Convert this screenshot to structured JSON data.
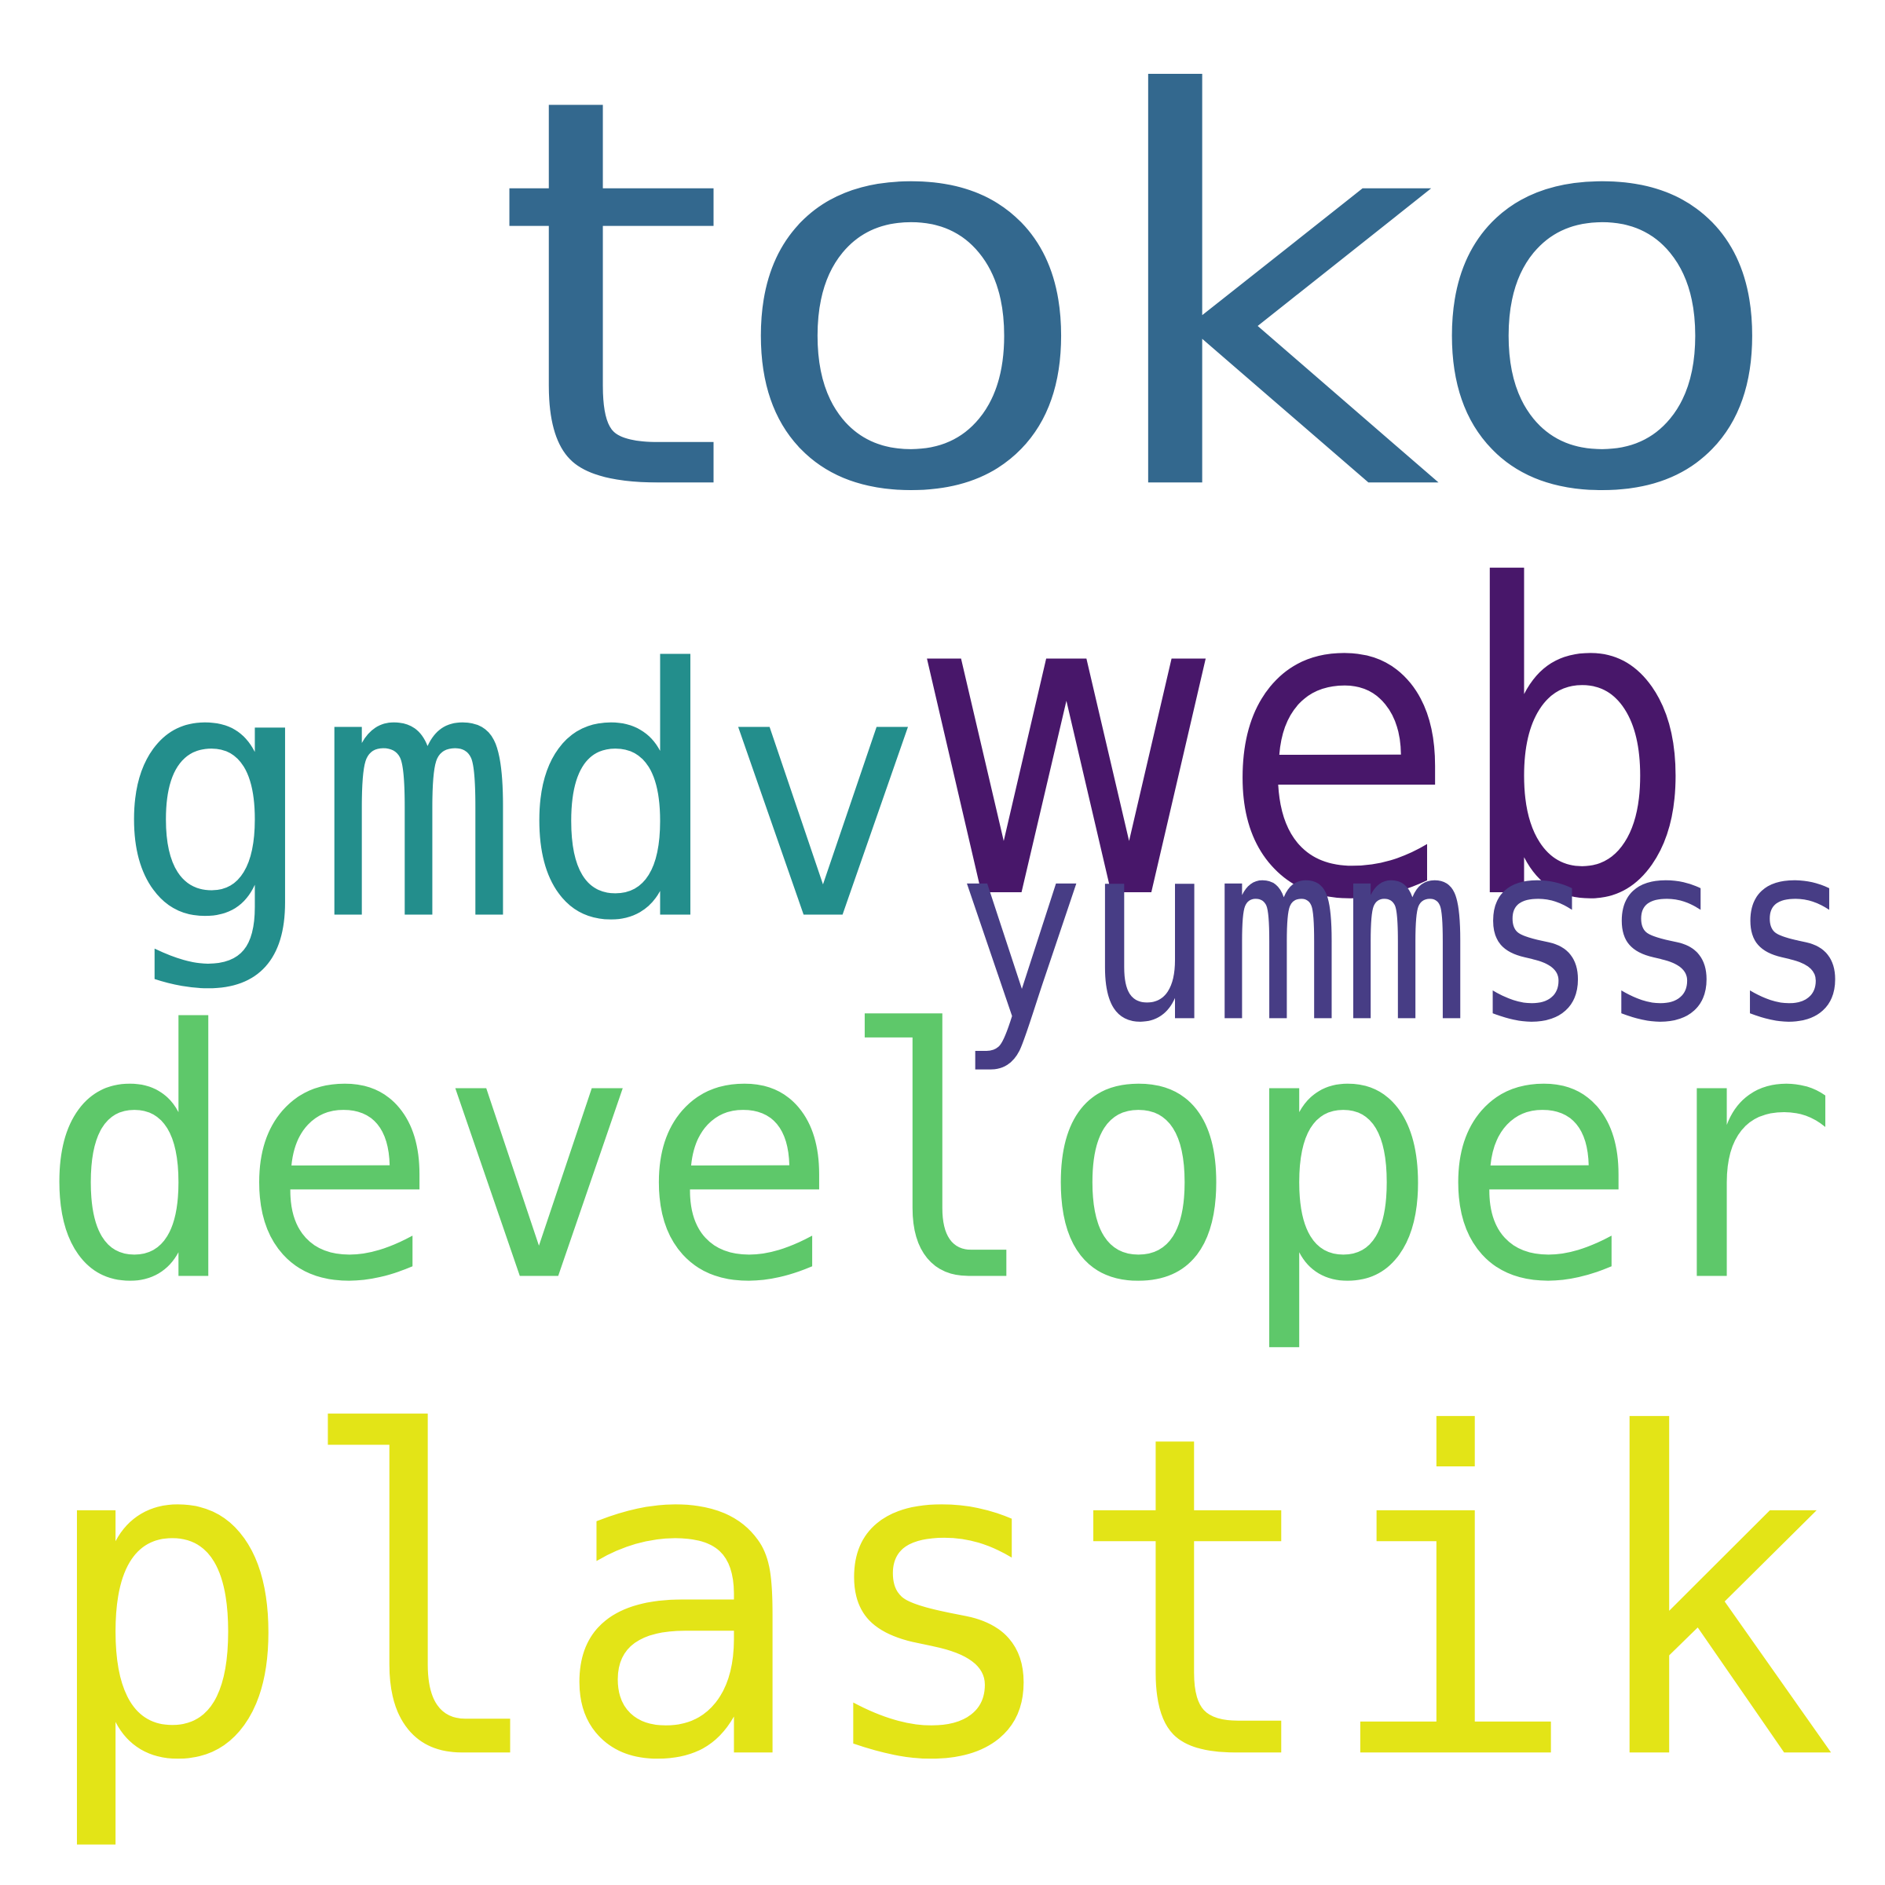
{
  "cloud": {
    "background": "#ffffff",
    "words": {
      "toko": {
        "text": "toko",
        "color": "#33688e"
      },
      "web": {
        "text": "web",
        "color": "#48176a"
      },
      "gmdv": {
        "text": "gmdv",
        "color": "#238e8c"
      },
      "yummsss": {
        "text": "yummsss",
        "color": "#473d85"
      },
      "developer": {
        "text": "developer",
        "color": "#5ec86a"
      },
      "plastik": {
        "text": "plastik",
        "color": "#e3e417"
      }
    }
  }
}
